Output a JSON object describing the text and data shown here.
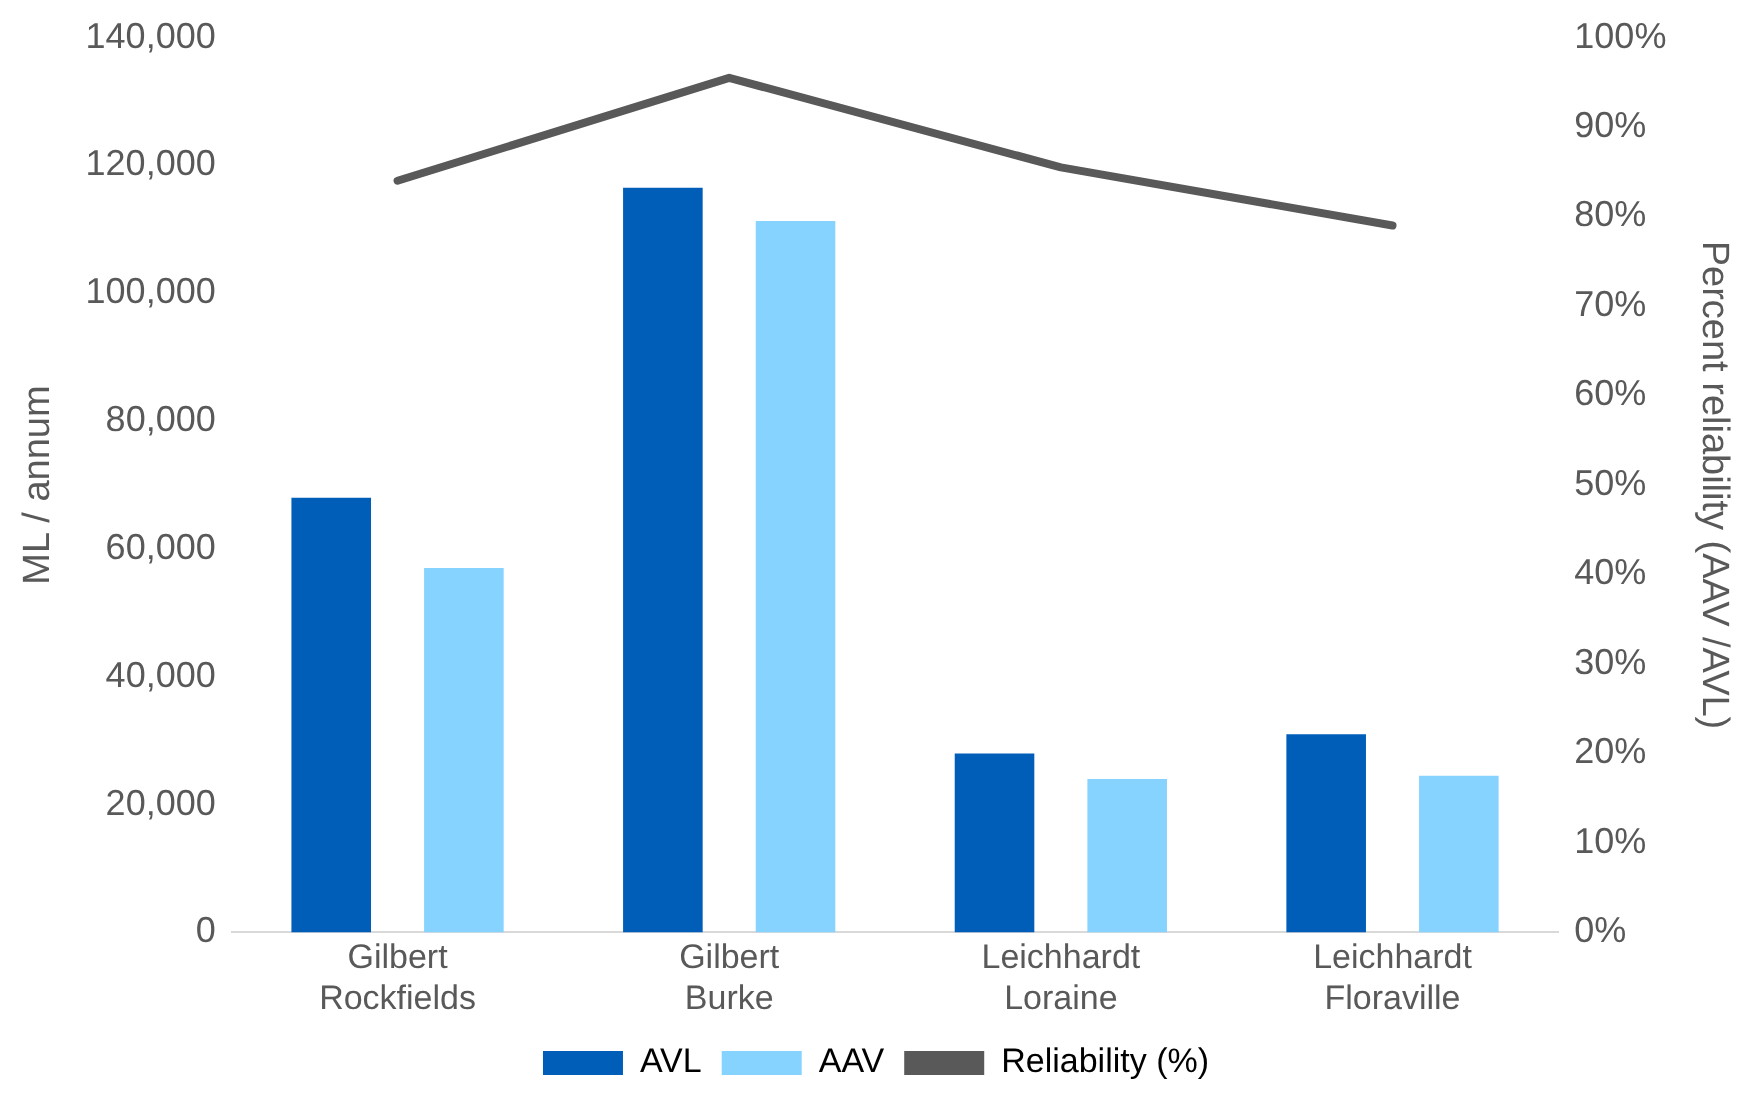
{
  "chart_data": {
    "type": "bar",
    "categories": [
      "Gilbert\nRockfields",
      "Gilbert\nBurke",
      "Leichhardt\nLoraine",
      "Leichhardt\nFloraville"
    ],
    "ylabel": "ML / annum",
    "y2label": "Percent reliability (AAV /AVL)",
    "series": [
      {
        "name": "AVL",
        "color": "#005eb8",
        "values": [
          68000,
          116500,
          28000,
          31000
        ]
      },
      {
        "name": "AAV",
        "color": "#87d3ff",
        "values": [
          57000,
          111300,
          24000,
          24500
        ]
      },
      {
        "name": "Reliability (%)",
        "type": "line",
        "axis": "y2",
        "color": "#595959",
        "values": [
          84,
          95.5,
          85.5,
          79
        ]
      }
    ],
    "ylim": [
      0,
      140000
    ],
    "yticks": [
      {
        "value": 0,
        "label": "0"
      },
      {
        "value": 20000,
        "label": "20,000"
      },
      {
        "value": 40000,
        "label": "40,000"
      },
      {
        "value": 60000,
        "label": "60,000"
      },
      {
        "value": 80000,
        "label": "80,000"
      },
      {
        "value": 100000,
        "label": "100,000"
      },
      {
        "value": 120000,
        "label": "120,000"
      },
      {
        "value": 140000,
        "label": "140,000"
      }
    ],
    "y2lim": [
      0,
      100
    ],
    "y2ticks": [
      {
        "value": 0,
        "label": "0%"
      },
      {
        "value": 10,
        "label": "10%"
      },
      {
        "value": 20,
        "label": "20%"
      },
      {
        "value": 30,
        "label": "30%"
      },
      {
        "value": 40,
        "label": "40%"
      },
      {
        "value": 50,
        "label": "50%"
      },
      {
        "value": 60,
        "label": "60%"
      },
      {
        "value": 70,
        "label": "70%"
      },
      {
        "value": 80,
        "label": "80%"
      },
      {
        "value": 90,
        "label": "90%"
      },
      {
        "value": 100,
        "label": "100%"
      }
    ],
    "grid": false,
    "legend": "bottom",
    "marker": "none",
    "line_style": "solid"
  }
}
